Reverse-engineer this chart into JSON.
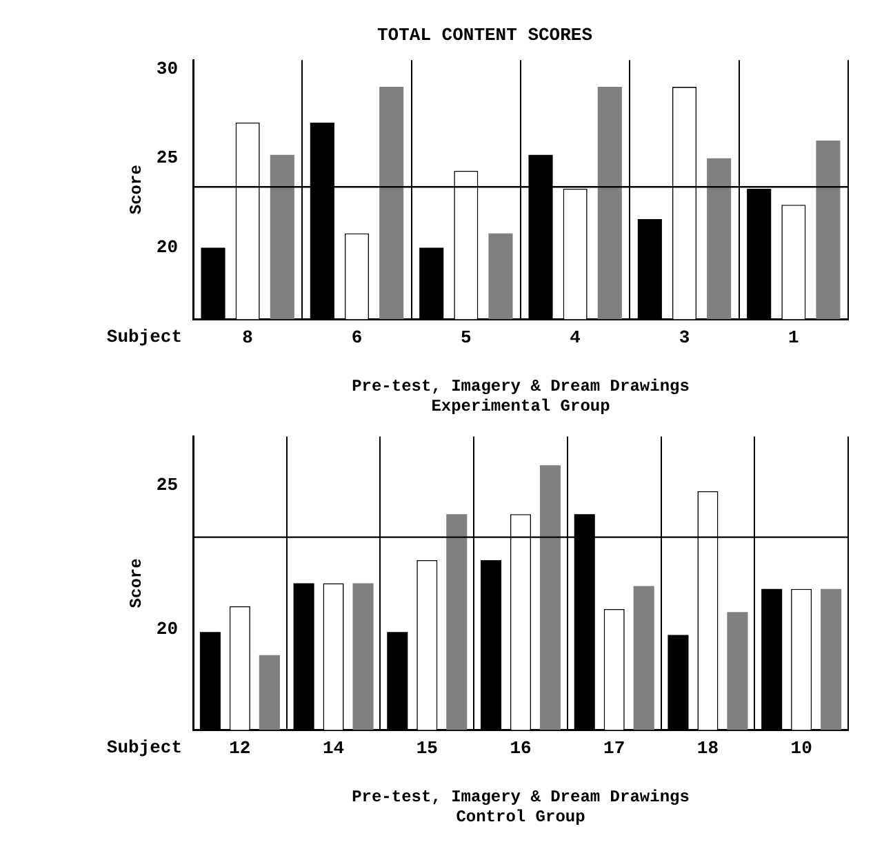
{
  "chart_data": [
    {
      "type": "bar",
      "title": "TOTAL CONTENT SCORES",
      "ylabel": "Score",
      "xlabel": "Pre-test, Imagery & Dream Drawings\nExperimental Group",
      "annotations": [
        "Subject"
      ],
      "categories": [
        "8",
        "6",
        "5",
        "4",
        "3",
        "1"
      ],
      "series": [
        {
          "color": "#000000",
          "values": [
            20,
            27,
            20,
            25.2,
            21.6,
            23.3
          ]
        },
        {
          "color": "#ffffff",
          "values": [
            27,
            20.8,
            24.3,
            23.3,
            29,
            22.4
          ]
        },
        {
          "color": "#808080",
          "values": [
            25.2,
            29,
            20.8,
            29,
            25,
            26
          ]
        }
      ],
      "ylim": [
        16,
        30.5
      ],
      "yticks": [
        20,
        25,
        30
      ],
      "grid": "x",
      "legend": false,
      "ref_lines": [
        {
          "axis": "y",
          "value": 23.4
        }
      ]
    },
    {
      "type": "bar",
      "ylabel": "Score",
      "xlabel": "Pre-test, Imagery & Dream Drawings\nControl Group",
      "annotations": [
        "Subject"
      ],
      "categories": [
        "12",
        "14",
        "15",
        "16",
        "17",
        "18",
        "10"
      ],
      "series": [
        {
          "color": "#000000",
          "values": [
            19.9,
            21.6,
            19.9,
            22.4,
            24.0,
            19.8,
            21.4
          ]
        },
        {
          "color": "#ffffff",
          "values": [
            20.8,
            21.6,
            22.4,
            24.0,
            20.7,
            24.8,
            21.4
          ]
        },
        {
          "color": "#808080",
          "values": [
            19.1,
            21.6,
            24.0,
            25.7,
            21.5,
            20.6,
            21.4
          ]
        }
      ],
      "ylim": [
        16.5,
        26.7
      ],
      "yticks": [
        20,
        25
      ],
      "grid": "x",
      "legend": false,
      "ref_lines": [
        {
          "axis": "y",
          "value": 23.2
        }
      ]
    }
  ]
}
